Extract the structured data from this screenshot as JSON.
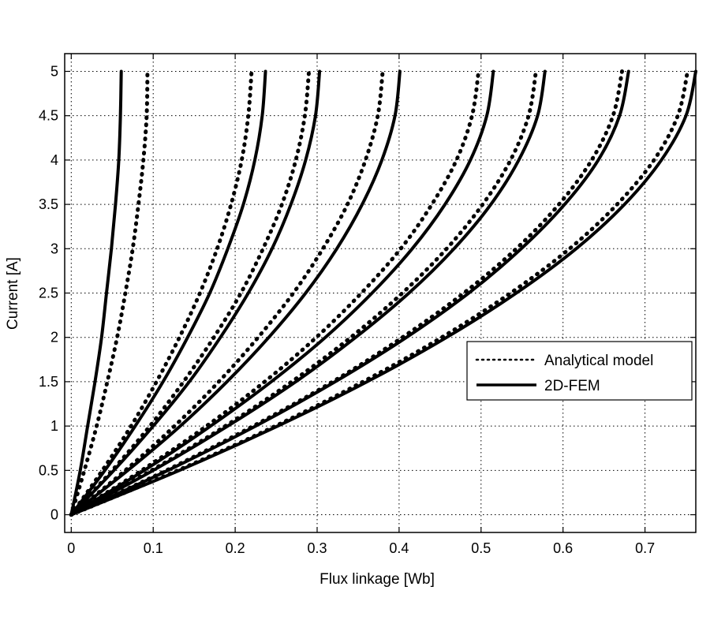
{
  "chart_data": {
    "type": "line",
    "title": "",
    "xlabel": "Flux linkage [Wb]",
    "ylabel": "Current [A]",
    "xlim": [
      -0.008,
      0.762
    ],
    "ylim": [
      -0.2,
      5.2
    ],
    "xticks": [
      0,
      0.1,
      0.2,
      0.3,
      0.4,
      0.5,
      0.6,
      0.7
    ],
    "xtick_labels": [
      "0",
      "0.1",
      "0.2",
      "0.3",
      "0.4",
      "0.5",
      "0.6",
      "0.7"
    ],
    "yticks": [
      0,
      0.5,
      1,
      1.5,
      2,
      2.5,
      3,
      3.5,
      4,
      4.5,
      5
    ],
    "ytick_labels": [
      "0",
      "0.5",
      "1",
      "1.5",
      "2",
      "2.5",
      "3",
      "3.5",
      "4",
      "4.5",
      "5"
    ],
    "grid": true,
    "legend": {
      "placement": "right-middle",
      "entries": [
        {
          "label": "Analytical model",
          "style": "dotted"
        },
        {
          "label": "2D-FEM",
          "style": "solid"
        }
      ]
    },
    "current": [
      0,
      0.5,
      1,
      1.5,
      2,
      2.5,
      3,
      3.5,
      4,
      4.5,
      5
    ],
    "series": [
      {
        "name": "Analytical model",
        "style": "dotted",
        "x": [
          0,
          0.016,
          0.031,
          0.044,
          0.056,
          0.066,
          0.075,
          0.082,
          0.088,
          0.092,
          0.093
        ]
      },
      {
        "name": "Analytical model",
        "style": "dotted",
        "x": [
          0,
          0.038,
          0.073,
          0.104,
          0.132,
          0.157,
          0.178,
          0.195,
          0.208,
          0.216,
          0.22
        ]
      },
      {
        "name": "Analytical model",
        "style": "dotted",
        "x": [
          0,
          0.05,
          0.096,
          0.137,
          0.174,
          0.207,
          0.234,
          0.257,
          0.274,
          0.285,
          0.29
        ]
      },
      {
        "name": "Analytical model",
        "style": "dotted",
        "x": [
          0,
          0.066,
          0.126,
          0.18,
          0.228,
          0.271,
          0.307,
          0.337,
          0.359,
          0.374,
          0.38
        ]
      },
      {
        "name": "Analytical model",
        "style": "dotted",
        "x": [
          0,
          0.086,
          0.165,
          0.236,
          0.299,
          0.354,
          0.402,
          0.44,
          0.47,
          0.489,
          0.497
        ]
      },
      {
        "name": "Analytical model",
        "style": "dotted",
        "x": [
          0,
          0.098,
          0.188,
          0.269,
          0.341,
          0.404,
          0.458,
          0.502,
          0.536,
          0.558,
          0.567
        ]
      },
      {
        "name": "Analytical model",
        "style": "dotted",
        "x": [
          0,
          0.116,
          0.222,
          0.319,
          0.404,
          0.479,
          0.543,
          0.595,
          0.635,
          0.661,
          0.672
        ]
      },
      {
        "name": "Analytical model",
        "style": "dotted",
        "x": [
          0,
          0.13,
          0.249,
          0.356,
          0.452,
          0.536,
          0.608,
          0.666,
          0.711,
          0.74,
          0.752
        ]
      },
      {
        "name": "2D-FEM",
        "style": "solid",
        "x": [
          0,
          0.011,
          0.02,
          0.029,
          0.037,
          0.043,
          0.049,
          0.054,
          0.058,
          0.06,
          0.061
        ]
      },
      {
        "name": "2D-FEM",
        "style": "solid",
        "x": [
          0,
          0.041,
          0.078,
          0.112,
          0.142,
          0.169,
          0.191,
          0.21,
          0.224,
          0.233,
          0.237
        ]
      },
      {
        "name": "2D-FEM",
        "style": "solid",
        "x": [
          0,
          0.052,
          0.1,
          0.144,
          0.182,
          0.216,
          0.245,
          0.268,
          0.286,
          0.298,
          0.303
        ]
      },
      {
        "name": "2D-FEM",
        "style": "solid",
        "x": [
          0,
          0.069,
          0.133,
          0.19,
          0.241,
          0.286,
          0.324,
          0.355,
          0.379,
          0.395,
          0.401
        ]
      },
      {
        "name": "2D-FEM",
        "style": "solid",
        "x": [
          0,
          0.089,
          0.17,
          0.244,
          0.31,
          0.367,
          0.416,
          0.456,
          0.487,
          0.507,
          0.515
        ]
      },
      {
        "name": "2D-FEM",
        "style": "solid",
        "x": [
          0,
          0.1,
          0.191,
          0.274,
          0.347,
          0.412,
          0.467,
          0.512,
          0.546,
          0.569,
          0.578
        ]
      },
      {
        "name": "2D-FEM",
        "style": "solid",
        "x": [
          0,
          0.118,
          0.225,
          0.322,
          0.409,
          0.485,
          0.549,
          0.602,
          0.643,
          0.669,
          0.68
        ]
      },
      {
        "name": "2D-FEM",
        "style": "solid",
        "x": [
          0,
          0.132,
          0.252,
          0.361,
          0.458,
          0.543,
          0.616,
          0.675,
          0.72,
          0.75,
          0.762
        ]
      }
    ]
  }
}
